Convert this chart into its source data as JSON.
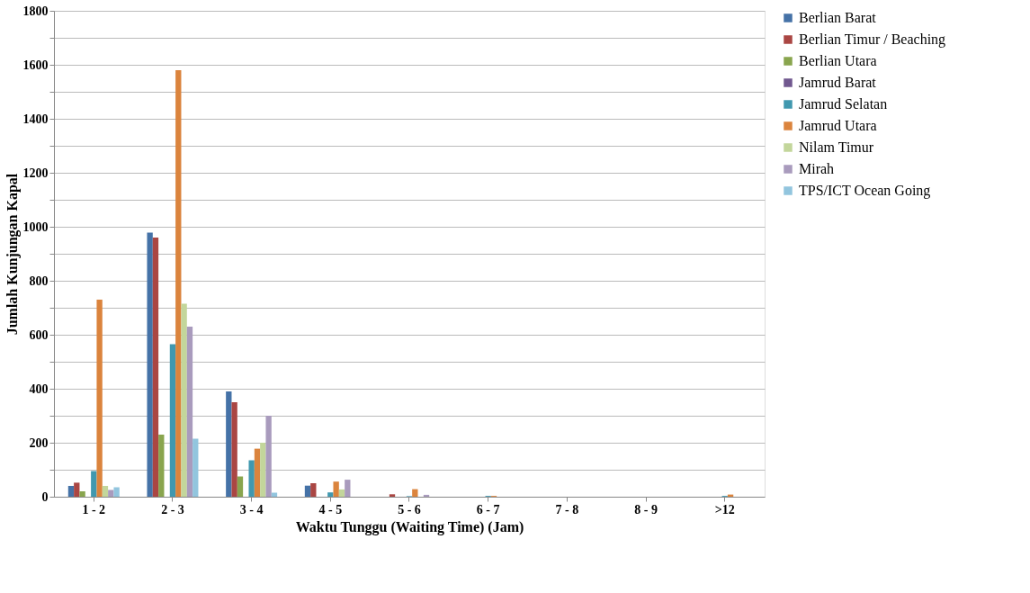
{
  "chart_data": {
    "type": "bar",
    "xlabel": "Waktu Tunggu (Waiting Time) (Jam)",
    "ylabel": "Jumlah Kunjungan Kapal",
    "categories": [
      "1 - 2",
      "2 - 3",
      "3 - 4",
      "4 - 5",
      "5 - 6",
      "6 - 7",
      "7 - 8",
      "8 - 9",
      ">12"
    ],
    "series": [
      {
        "name": "Berlian Barat",
        "color": "#4572a7",
        "values": [
          40,
          978,
          390,
          41,
          0,
          0,
          0,
          0,
          0
        ]
      },
      {
        "name": "Berlian Timur / Beaching",
        "color": "#aa4643",
        "values": [
          52,
          960,
          350,
          50,
          9,
          0,
          0,
          0,
          0
        ]
      },
      {
        "name": "Berlian Utara",
        "color": "#89a54e",
        "values": [
          20,
          230,
          75,
          null,
          0,
          0,
          0,
          0,
          0
        ]
      },
      {
        "name": "Jamrud Barat",
        "color": "#71588f",
        "values": [
          0,
          0,
          0,
          0,
          0,
          0,
          0,
          0,
          0
        ]
      },
      {
        "name": "Jamrud Selatan",
        "color": "#4198af",
        "values": [
          95,
          565,
          135,
          16,
          2,
          3,
          0,
          0,
          3
        ]
      },
      {
        "name": "Jamrud Utara",
        "color": "#db843d",
        "values": [
          730,
          1580,
          178,
          56,
          28,
          3,
          0,
          0,
          8
        ]
      },
      {
        "name": "Nilam Timur",
        "color": "#c3d69b",
        "values": [
          40,
          715,
          200,
          27,
          null,
          0,
          0,
          0,
          0
        ]
      },
      {
        "name": "Mirah",
        "color": "#a99bbd",
        "values": [
          25,
          630,
          300,
          63,
          7,
          0,
          0,
          0,
          null
        ]
      },
      {
        "name": "TPS/ICT Ocean Going",
        "color": "#92c5de",
        "values": [
          35,
          215,
          15,
          0,
          0,
          0,
          0,
          0,
          0
        ]
      }
    ],
    "ylim": [
      0,
      1800
    ],
    "yticks": [
      0,
      {
        "value": 100,
        "label": null
      },
      200,
      {
        "value": 300,
        "label": null
      },
      400,
      {
        "value": 500,
        "label": null
      },
      600,
      {
        "value": 700,
        "label": null
      },
      800,
      {
        "value": 900,
        "label": null
      },
      1000,
      {
        "value": 1100,
        "label": null
      },
      1200,
      {
        "value": 1300,
        "label": null
      },
      1400,
      {
        "value": 1500,
        "label": null
      },
      1600,
      {
        "value": 1700,
        "label": null
      },
      1800
    ],
    "grid": "y",
    "legend": "right"
  }
}
